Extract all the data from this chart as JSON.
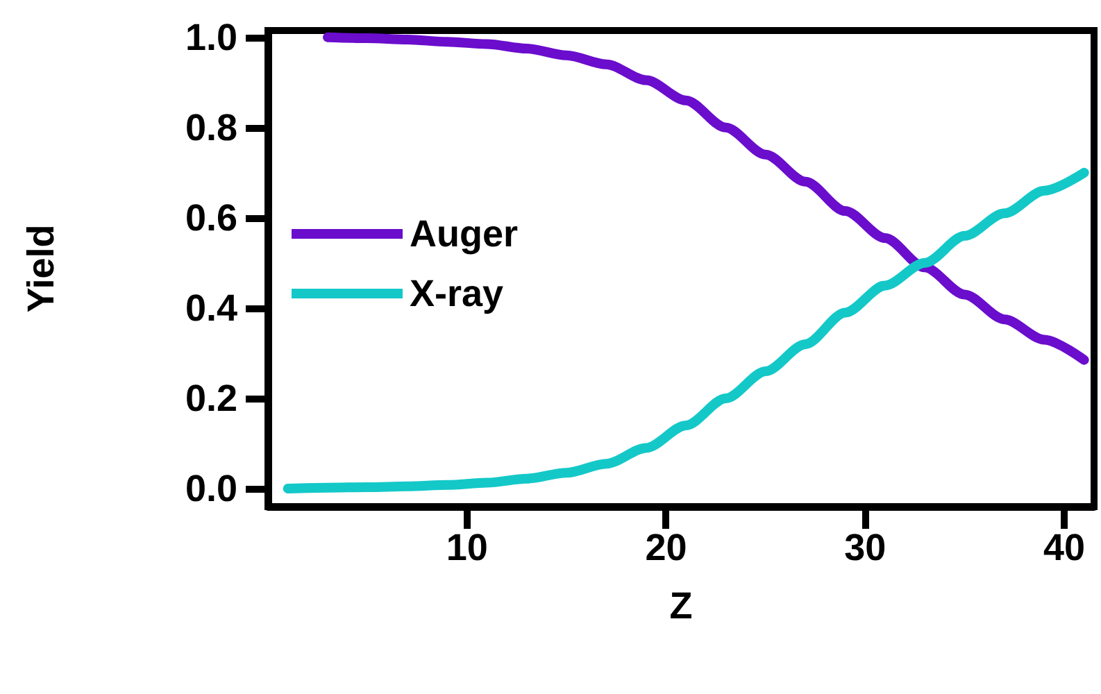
{
  "chart_data": {
    "type": "line",
    "xlabel": "Z",
    "ylabel": "Yield",
    "xlim": [
      0,
      41.5
    ],
    "xticks": [
      10,
      20,
      30,
      40
    ],
    "ylim": [
      -0.04,
      1.015
    ],
    "yticks": [
      {
        "value": 0,
        "label": "0.0"
      },
      {
        "value": 0.2,
        "label": "0.2"
      },
      {
        "value": 0.4,
        "label": "0.4"
      },
      {
        "value": 0.6,
        "label": "0.6"
      },
      {
        "value": 0.8,
        "label": "0.8"
      },
      {
        "value": 1,
        "label": "1.0"
      }
    ],
    "grid": false,
    "legend": "left",
    "marker": "none",
    "line_style": "solid",
    "series": [
      {
        "name": "Auger",
        "color": "#6a0dcc",
        "x": [
          3,
          5,
          7,
          9,
          11,
          13,
          15,
          17,
          19,
          21,
          23,
          25,
          27,
          29,
          31,
          33,
          35,
          37,
          39,
          41
        ],
        "values": [
          1.0,
          0.998,
          0.995,
          0.99,
          0.985,
          0.975,
          0.96,
          0.94,
          0.905,
          0.86,
          0.8,
          0.74,
          0.68,
          0.615,
          0.555,
          0.49,
          0.43,
          0.375,
          0.33,
          0.285
        ]
      },
      {
        "name": "X-ray",
        "color": "#14c8c8",
        "x": [
          1,
          3,
          5,
          7,
          9,
          11,
          13,
          15,
          17,
          19,
          21,
          23,
          25,
          27,
          29,
          31,
          33,
          35,
          37,
          39,
          41
        ],
        "values": [
          0,
          0.002,
          0.003,
          0.005,
          0.008,
          0.013,
          0.022,
          0.035,
          0.055,
          0.09,
          0.14,
          0.2,
          0.26,
          0.32,
          0.39,
          0.45,
          0.5,
          0.56,
          0.61,
          0.66,
          0.7
        ]
      }
    ]
  }
}
